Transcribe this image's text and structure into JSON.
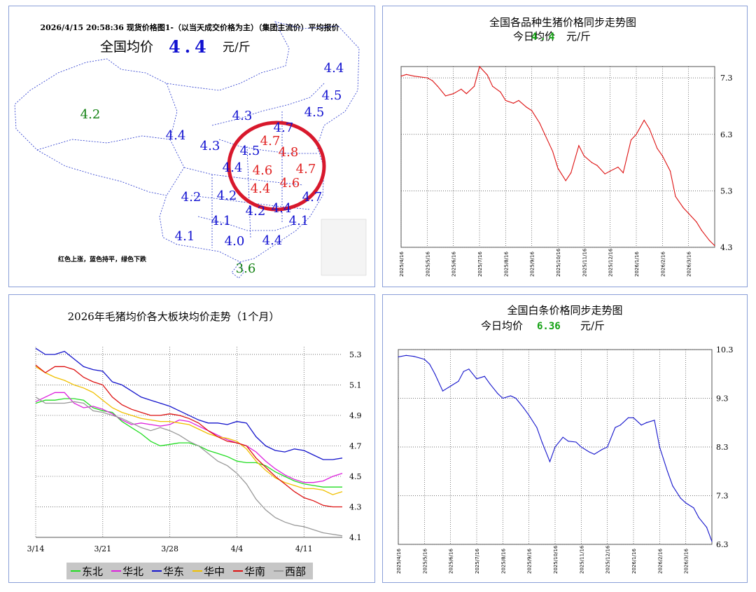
{
  "map_panel": {
    "header": "2026/4/15  20:58:36 现货价格图1-（以当天成交价格为主）（集团主流价）平均报价",
    "avg_label": "全国均价",
    "avg_value": "4.4",
    "avg_unit": "元/斤",
    "note": "红色上涨，蓝色持平，绿色下跌",
    "colors": {
      "up": "#e02020",
      "flat": "#1010d0",
      "down": "#108010",
      "circle": "#d8182c"
    },
    "labels": [
      {
        "value": "4.2",
        "status": "down"
      },
      {
        "value": "4.4",
        "status": "flat"
      },
      {
        "value": "4.3",
        "status": "flat"
      },
      {
        "value": "4.3",
        "status": "flat"
      },
      {
        "value": "4.4",
        "status": "flat"
      },
      {
        "value": "4.5",
        "status": "flat"
      },
      {
        "value": "4.5",
        "status": "flat"
      },
      {
        "value": "4.7",
        "status": "flat"
      },
      {
        "value": "4.7",
        "status": "up"
      },
      {
        "value": "4.8",
        "status": "up"
      },
      {
        "value": "4.5",
        "status": "flat"
      },
      {
        "value": "4.6",
        "status": "up"
      },
      {
        "value": "4.7",
        "status": "up"
      },
      {
        "value": "4.4",
        "status": "flat"
      },
      {
        "value": "4.4",
        "status": "up"
      },
      {
        "value": "4.6",
        "status": "up"
      },
      {
        "value": "4.2",
        "status": "flat"
      },
      {
        "value": "4.2",
        "status": "flat"
      },
      {
        "value": "4.7",
        "status": "flat"
      },
      {
        "value": "4.1",
        "status": "flat"
      },
      {
        "value": "4.2",
        "status": "flat"
      },
      {
        "value": "4.1",
        "status": "flat"
      },
      {
        "value": "4.4",
        "status": "flat"
      },
      {
        "value": "4.1",
        "status": "flat"
      },
      {
        "value": "4.0",
        "status": "flat"
      },
      {
        "value": "4.4",
        "status": "flat"
      },
      {
        "value": "3.6",
        "status": "down"
      }
    ]
  },
  "chart_data": [
    {
      "type": "line",
      "title": "全国各品种生猪价格同步走势图",
      "subtitle_prefix": "今日均价",
      "subtitle_value": "4.4",
      "subtitle_unit": "元/斤",
      "color": "#dd1111",
      "value_color": "#10a010",
      "ylim": [
        4.3,
        7.5
      ],
      "yticks": [
        "7.3",
        "6.3",
        "5.3",
        "4.3"
      ],
      "xticks": [
        "2025/4/16",
        "2025/5/16",
        "2025/6/16",
        "2025/7/16",
        "2025/8/16",
        "2025/9/16",
        "2025/10/16",
        "2025/11/16",
        "2025/12/16",
        "2026/1/16",
        "2026/2/16",
        "2026/3/16"
      ],
      "x": [
        0,
        0.2,
        0.5,
        1,
        1.2,
        1.4,
        1.7,
        2,
        2.3,
        2.5,
        2.8,
        3,
        3.3,
        3.5,
        3.8,
        4,
        4.3,
        4.5,
        4.8,
        5,
        5.3,
        5.5,
        5.8,
        6,
        6.3,
        6.5,
        6.8,
        7,
        7.3,
        7.5,
        7.8,
        8,
        8.3,
        8.5,
        8.8,
        9,
        9.3,
        9.5,
        9.8,
        10,
        10.3,
        10.5,
        10.8,
        11,
        11.3,
        11.5,
        11.8,
        12
      ],
      "values": [
        7.33,
        7.36,
        7.33,
        7.3,
        7.25,
        7.15,
        6.98,
        7.02,
        7.1,
        7.02,
        7.15,
        7.5,
        7.35,
        7.15,
        7.05,
        6.9,
        6.85,
        6.9,
        6.78,
        6.72,
        6.5,
        6.3,
        6.0,
        5.7,
        5.48,
        5.62,
        6.1,
        5.92,
        5.8,
        5.75,
        5.6,
        5.65,
        5.72,
        5.62,
        6.2,
        6.3,
        6.55,
        6.4,
        6.05,
        5.92,
        5.65,
        5.2,
        5.0,
        4.9,
        4.75,
        4.6,
        4.42,
        4.33
      ]
    },
    {
      "type": "line",
      "title": "2026年毛猪均价各大板块均价走势（1个月）",
      "ylim": [
        4.1,
        5.35
      ],
      "yticks": [
        "5.3",
        "5.1",
        "4.9",
        "4.7",
        "4.5",
        "4.3",
        "4.1"
      ],
      "categories": [
        "3/14",
        "3/21",
        "3/28",
        "4/4",
        "4/11"
      ],
      "x": [
        0,
        1,
        2,
        3,
        4,
        5,
        6,
        7,
        8,
        9,
        10,
        11,
        12,
        13,
        14,
        15,
        16,
        17,
        18,
        19,
        20,
        21,
        22,
        23,
        24,
        25,
        26,
        27,
        28,
        29,
        30,
        31,
        32
      ],
      "series": [
        {
          "name": "东北",
          "color": "#22dd22",
          "values": [
            4.98,
            5.0,
            5.0,
            5.01,
            5.01,
            5.0,
            4.95,
            4.93,
            4.92,
            4.86,
            4.82,
            4.78,
            4.73,
            4.7,
            4.71,
            4.72,
            4.72,
            4.7,
            4.67,
            4.65,
            4.63,
            4.6,
            4.59,
            4.59,
            4.57,
            4.53,
            4.5,
            4.47,
            4.45,
            4.44,
            4.43,
            4.43,
            4.43
          ]
        },
        {
          "name": "华北",
          "color": "#dd22dd",
          "values": [
            4.99,
            5.02,
            5.05,
            5.05,
            4.98,
            4.95,
            4.96,
            4.94,
            4.91,
            4.87,
            4.84,
            4.85,
            4.84,
            4.83,
            4.84,
            4.87,
            4.86,
            4.83,
            4.8,
            4.77,
            4.74,
            4.72,
            4.7,
            4.66,
            4.6,
            4.55,
            4.51,
            4.48,
            4.46,
            4.46,
            4.47,
            4.5,
            4.52
          ]
        },
        {
          "name": "华东",
          "color": "#1515cc",
          "values": [
            5.34,
            5.3,
            5.3,
            5.32,
            5.27,
            5.22,
            5.2,
            5.19,
            5.12,
            5.1,
            5.06,
            5.02,
            5.0,
            4.98,
            4.96,
            4.93,
            4.9,
            4.87,
            4.85,
            4.85,
            4.84,
            4.86,
            4.85,
            4.76,
            4.7,
            4.67,
            4.66,
            4.68,
            4.67,
            4.64,
            4.61,
            4.61,
            4.62
          ]
        },
        {
          "name": "华中",
          "color": "#f0c000",
          "values": [
            5.22,
            5.18,
            5.15,
            5.13,
            5.1,
            5.08,
            5.05,
            5.0,
            4.95,
            4.92,
            4.9,
            4.88,
            4.87,
            4.86,
            4.86,
            4.85,
            4.84,
            4.81,
            4.78,
            4.76,
            4.75,
            4.73,
            4.68,
            4.6,
            4.54,
            4.49,
            4.46,
            4.44,
            4.42,
            4.42,
            4.41,
            4.38,
            4.4
          ]
        },
        {
          "name": "华南",
          "color": "#dd1111",
          "values": [
            5.23,
            5.18,
            5.22,
            5.22,
            5.2,
            5.15,
            5.12,
            5.1,
            5.02,
            4.97,
            4.94,
            4.92,
            4.9,
            4.9,
            4.91,
            4.9,
            4.88,
            4.85,
            4.8,
            4.76,
            4.73,
            4.72,
            4.7,
            4.62,
            4.56,
            4.5,
            4.45,
            4.4,
            4.36,
            4.34,
            4.31,
            4.3,
            4.3
          ]
        },
        {
          "name": "西部",
          "color": "#999999",
          "values": [
            5.02,
            4.98,
            4.98,
            4.98,
            4.99,
            4.98,
            4.93,
            4.92,
            4.9,
            4.88,
            4.85,
            4.82,
            4.8,
            4.82,
            4.8,
            4.77,
            4.73,
            4.7,
            4.65,
            4.6,
            4.57,
            4.52,
            4.45,
            4.35,
            4.28,
            4.23,
            4.2,
            4.18,
            4.17,
            4.15,
            4.13,
            4.12,
            4.11
          ]
        }
      ]
    },
    {
      "type": "line",
      "title": "全国白条价格同步走势图",
      "subtitle_prefix": "今日均价",
      "subtitle_value": "6.36",
      "subtitle_unit": "元/斤",
      "color": "#1515cc",
      "value_color": "#10a010",
      "ylim": [
        6.3,
        10.3
      ],
      "yticks": [
        "10.3",
        "9.3",
        "8.3",
        "7.3",
        "6.3"
      ],
      "xticks": [
        "2025/4/16",
        "2025/5/16",
        "2025/6/16",
        "2025/7/16",
        "2025/8/16",
        "2025/9/16",
        "2025/10/16",
        "2025/11/16",
        "2025/12/16",
        "2026/1/16",
        "2026/2/16",
        "2026/3/16"
      ],
      "x": [
        0,
        0.3,
        0.6,
        1,
        1.2,
        1.4,
        1.7,
        2,
        2.3,
        2.5,
        2.7,
        3,
        3.3,
        3.5,
        3.8,
        4,
        4.3,
        4.5,
        4.8,
        5,
        5.3,
        5.5,
        5.8,
        6,
        6.3,
        6.5,
        6.8,
        7,
        7.3,
        7.5,
        7.8,
        8,
        8.3,
        8.5,
        8.8,
        9,
        9.3,
        9.5,
        9.8,
        10,
        10.3,
        10.5,
        10.8,
        11,
        11.3,
        11.5,
        11.8,
        12
      ],
      "values": [
        10.15,
        10.18,
        10.16,
        10.1,
        10.0,
        9.8,
        9.45,
        9.55,
        9.65,
        9.85,
        9.9,
        9.7,
        9.75,
        9.6,
        9.4,
        9.3,
        9.35,
        9.3,
        9.1,
        8.95,
        8.7,
        8.4,
        8.0,
        8.3,
        8.5,
        8.42,
        8.4,
        8.3,
        8.2,
        8.15,
        8.25,
        8.3,
        8.7,
        8.75,
        8.9,
        8.9,
        8.75,
        8.8,
        8.85,
        8.3,
        7.8,
        7.5,
        7.25,
        7.15,
        7.05,
        6.85,
        6.65,
        6.36
      ]
    }
  ]
}
